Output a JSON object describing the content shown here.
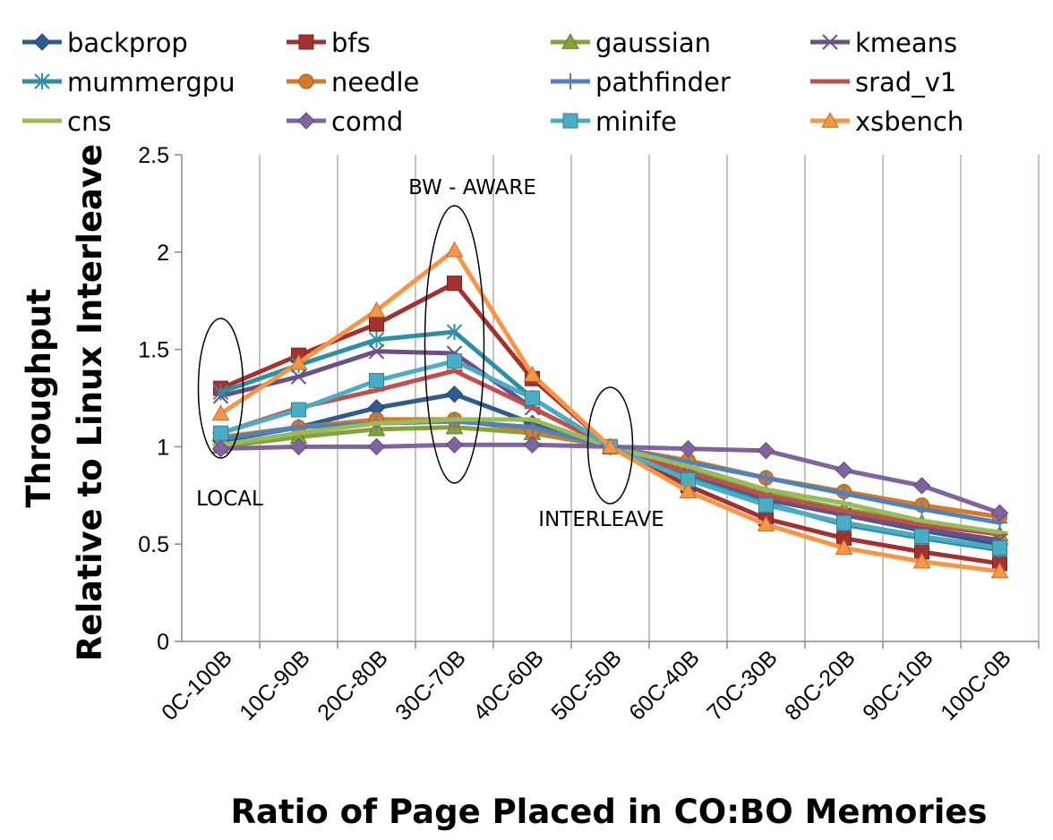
{
  "chart_data": {
    "type": "line",
    "title": "",
    "xlabel": "Ratio of Page Placed in CO:BO Memories",
    "ylabel_lines": [
      "Throughput",
      "Relative to Linux Interleave"
    ],
    "categories": [
      "0C-100B",
      "10C-90B",
      "20C-80B",
      "30C-70B",
      "40C-60B",
      "50C-50B",
      "60C-40B",
      "70C-30B",
      "80C-20B",
      "90C-10B",
      "100C-0B"
    ],
    "ylim": [
      0,
      2.5
    ],
    "yticks": [
      "0",
      "0.5",
      "1",
      "1.5",
      "2",
      "2.5"
    ],
    "grid": "vertical",
    "legend_position": "top",
    "annotations": [
      {
        "label": "LOCAL",
        "category": "0C-100B"
      },
      {
        "label": "BW - AWARE",
        "category": "30C-70B"
      },
      {
        "label": "INTERLEAVE",
        "category": "50C-50B"
      }
    ],
    "series": [
      {
        "name": "backprop",
        "color": "#2f5b91",
        "marker": "diamond",
        "values": [
          1.03,
          1.1,
          1.2,
          1.27,
          1.12,
          1.0,
          0.85,
          0.73,
          0.65,
          0.57,
          0.5
        ]
      },
      {
        "name": "bfs",
        "color": "#a3312f",
        "marker": "square",
        "values": [
          1.3,
          1.47,
          1.63,
          1.84,
          1.35,
          1.0,
          0.8,
          0.63,
          0.53,
          0.46,
          0.4
        ]
      },
      {
        "name": "gaussian",
        "color": "#84a33d",
        "marker": "triangle",
        "values": [
          1.0,
          1.05,
          1.09,
          1.1,
          1.07,
          1.0,
          0.88,
          0.76,
          0.68,
          0.61,
          0.55
        ]
      },
      {
        "name": "kmeans",
        "color": "#6b5086",
        "marker": "x",
        "values": [
          1.26,
          1.36,
          1.49,
          1.48,
          1.2,
          1.0,
          0.87,
          0.74,
          0.65,
          0.58,
          0.52
        ]
      },
      {
        "name": "mummergpu",
        "color": "#2e8fa3",
        "marker": "asterisk",
        "values": [
          1.28,
          1.42,
          1.55,
          1.59,
          1.25,
          1.0,
          0.84,
          0.71,
          0.6,
          0.53,
          0.47
        ]
      },
      {
        "name": "needle",
        "color": "#d47a2a",
        "marker": "circle",
        "values": [
          1.05,
          1.1,
          1.14,
          1.14,
          1.08,
          1.0,
          0.93,
          0.84,
          0.77,
          0.7,
          0.64
        ]
      },
      {
        "name": "pathfinder",
        "color": "#4f81bd",
        "marker": "plus",
        "values": [
          1.04,
          1.1,
          1.12,
          1.13,
          1.1,
          1.0,
          0.92,
          0.84,
          0.76,
          0.68,
          0.61
        ]
      },
      {
        "name": "srad_v1",
        "color": "#c0504d",
        "marker": "dash",
        "values": [
          1.07,
          1.2,
          1.29,
          1.39,
          1.2,
          1.0,
          0.87,
          0.75,
          0.67,
          0.6,
          0.55
        ]
      },
      {
        "name": "cns",
        "color": "#9bbb59",
        "marker": "dash",
        "values": [
          1.01,
          1.07,
          1.12,
          1.14,
          1.14,
          1.0,
          0.9,
          0.78,
          0.71,
          0.62,
          0.56
        ]
      },
      {
        "name": "comd",
        "color": "#8064a2",
        "marker": "diamond",
        "values": [
          0.99,
          1.0,
          1.0,
          1.01,
          1.01,
          1.0,
          0.99,
          0.98,
          0.88,
          0.8,
          0.66
        ]
      },
      {
        "name": "minife",
        "color": "#4bacc6",
        "marker": "square",
        "values": [
          1.07,
          1.19,
          1.34,
          1.44,
          1.25,
          1.0,
          0.83,
          0.7,
          0.61,
          0.54,
          0.48
        ]
      },
      {
        "name": "xsbench",
        "color": "#f79646",
        "marker": "triangle",
        "values": [
          1.17,
          1.43,
          1.7,
          2.01,
          1.37,
          1.0,
          0.77,
          0.6,
          0.48,
          0.41,
          0.36
        ]
      }
    ]
  }
}
